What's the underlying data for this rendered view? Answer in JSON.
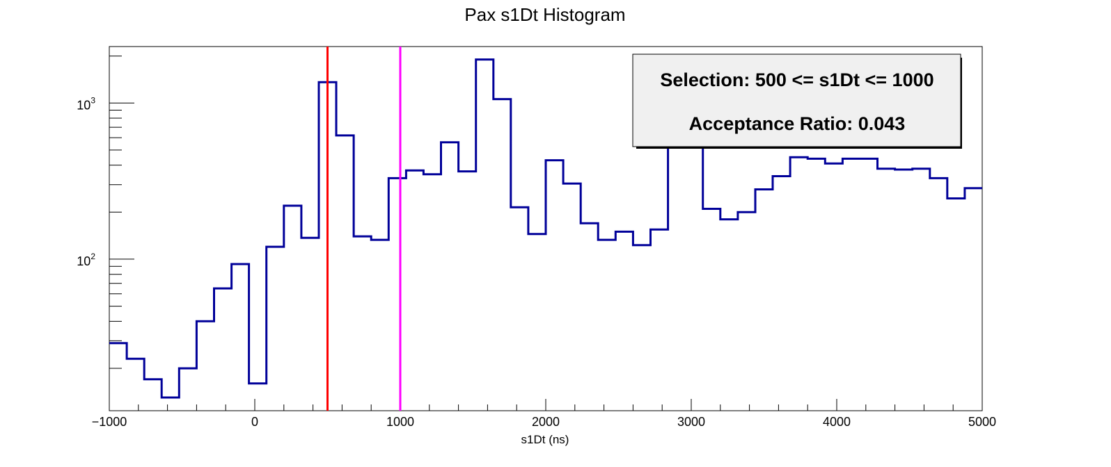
{
  "chart_data": {
    "type": "histogram",
    "title": "Pax s1Dt Histogram",
    "xlabel": "s1Dt (ns)",
    "ylabel": "",
    "xlim": [
      -1000,
      5000
    ],
    "ylim": [
      10.7,
      2300
    ],
    "log_y": true,
    "grid": false,
    "bin_width": 120,
    "bin_start": -1000,
    "values": [
      29,
      23,
      17,
      13,
      20,
      40,
      65,
      93,
      16,
      120,
      220,
      137,
      1360,
      620,
      140,
      133,
      330,
      370,
      350,
      560,
      365,
      1900,
      1060,
      215,
      145,
      430,
      305,
      170,
      133,
      150,
      123,
      155,
      1500,
      2000,
      210,
      180,
      200,
      280,
      340,
      450,
      440,
      410,
      440,
      440,
      380,
      375,
      380,
      330,
      245,
      285
    ],
    "line_color": "#000099",
    "x_ticks": [
      -1000,
      0,
      1000,
      2000,
      3000,
      4000,
      5000
    ],
    "x_tick_labels": [
      "−1000",
      "0",
      "1000",
      "2000",
      "3000",
      "4000",
      "5000"
    ],
    "y_ticks": [
      {
        "value": 100,
        "base": "10",
        "exp": "2"
      },
      {
        "value": 1000,
        "base": "10",
        "exp": "3"
      }
    ],
    "vlines": [
      {
        "x": 500,
        "color": "#ff0000"
      },
      {
        "x": 1000,
        "color": "#ff00ff"
      }
    ],
    "legend": {
      "position": "top-right",
      "lines": [
        "Selection: 500 <= s1Dt <= 1000",
        "Acceptance Ratio: 0.043"
      ]
    }
  }
}
